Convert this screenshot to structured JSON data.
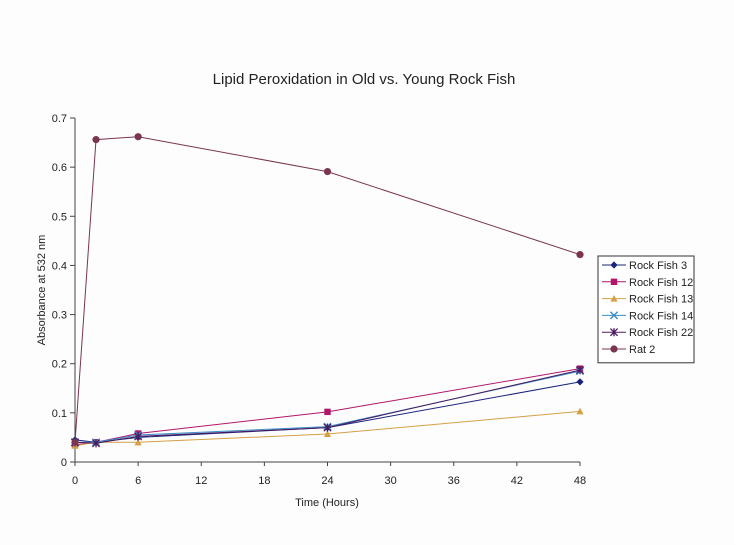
{
  "chart_data": {
    "type": "line",
    "title": "Lipid Peroxidation in Old vs. Young Rock Fish",
    "xlabel": "Time (Hours)",
    "ylabel": "Absorbance at 532 nm",
    "xlim": [
      0,
      48
    ],
    "ylim": [
      0,
      0.7
    ],
    "x_ticks": [
      "0",
      "6",
      "12",
      "18",
      "24",
      "30",
      "36",
      "42",
      "48"
    ],
    "y_ticks": [
      "0",
      "0.1",
      "0.2",
      "0.3",
      "0.4",
      "0.5",
      "0.6",
      "0.7"
    ],
    "grid": false,
    "legend_position": "right",
    "series": [
      {
        "name": "Rock Fish 3",
        "color": "#1a237e",
        "marker": "diamond",
        "x": [
          0,
          2,
          6,
          24,
          48
        ],
        "y": [
          0.045,
          0.04,
          0.05,
          0.07,
          0.163
        ]
      },
      {
        "name": "Rock Fish 12",
        "color": "#b0176b",
        "marker": "square",
        "x": [
          0,
          2,
          6,
          24,
          48
        ],
        "y": [
          0.035,
          0.04,
          0.058,
          0.102,
          0.19
        ]
      },
      {
        "name": "Rock Fish 13",
        "color": "#d4a046",
        "marker": "triangle",
        "x": [
          0,
          2,
          6,
          24,
          48
        ],
        "y": [
          0.033,
          0.04,
          0.04,
          0.057,
          0.103
        ]
      },
      {
        "name": "Rock Fish 14",
        "color": "#3a8fc8",
        "marker": "x",
        "x": [
          0,
          2,
          6,
          24,
          48
        ],
        "y": [
          0.04,
          0.04,
          0.055,
          0.072,
          0.185
        ]
      },
      {
        "name": "Rock Fish 22",
        "color": "#4a1a60",
        "marker": "star",
        "x": [
          0,
          2,
          6,
          24,
          48
        ],
        "y": [
          0.04,
          0.038,
          0.052,
          0.07,
          0.187
        ]
      },
      {
        "name": "Rat 2",
        "color": "#7a3550",
        "marker": "circle",
        "x": [
          0,
          2,
          6,
          24,
          48
        ],
        "y": [
          0.04,
          0.656,
          0.662,
          0.591,
          0.422
        ]
      }
    ]
  }
}
